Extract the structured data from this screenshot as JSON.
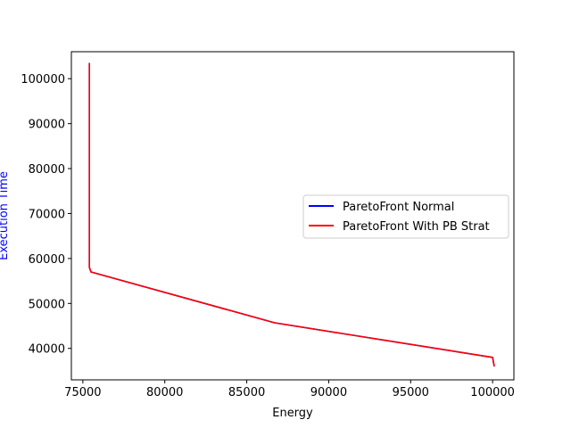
{
  "chart_data": {
    "type": "line",
    "title": "",
    "xlabel": "Energy",
    "ylabel": "Execution Time",
    "xlim": [
      74300,
      101300
    ],
    "ylim": [
      33000,
      106000
    ],
    "xticks": [
      75000,
      80000,
      85000,
      90000,
      95000,
      100000
    ],
    "yticks": [
      40000,
      50000,
      60000,
      70000,
      80000,
      90000,
      100000
    ],
    "grid": false,
    "legend_position": "center-right",
    "colors": {
      "ylabel": "#0000ff",
      "normal": "#0000ff",
      "pb_strat": "#ff0000"
    },
    "series": [
      {
        "name": "ParetoFront Normal",
        "color": "#0000ff",
        "x": [
          75400,
          75400,
          75400,
          75500,
          86700,
          100000,
          100100
        ],
        "y": [
          103500,
          62000,
          58000,
          57000,
          45700,
          38000,
          36000
        ]
      },
      {
        "name": "ParetoFront With PB Strat",
        "color": "#ff0000",
        "x": [
          75400,
          75400,
          75400,
          75500,
          86700,
          100000,
          100100
        ],
        "y": [
          103500,
          62000,
          58000,
          57000,
          45700,
          38000,
          36000
        ]
      }
    ]
  }
}
